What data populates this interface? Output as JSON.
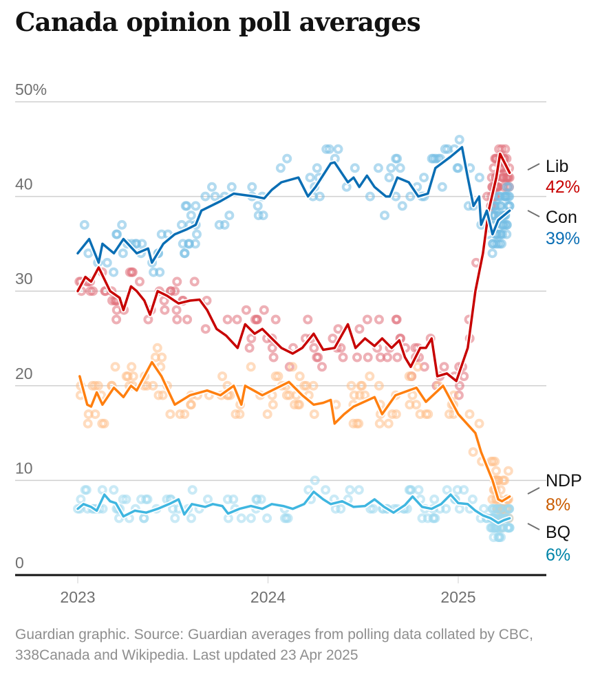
{
  "title": "Canada opinion poll averages",
  "source": "Guardian graphic. Source: Guardian averages from polling data collated by CBC, 338Canada and Wikipedia. Last updated 23 Apr 2025",
  "chart_data": {
    "type": "line",
    "title": "Canada opinion poll averages",
    "xlabel": "",
    "ylabel": "",
    "x_unit": "year (fractional)",
    "xlim": [
      2022.6,
      2025.5
    ],
    "ylim": [
      0,
      50
    ],
    "y_ticks": [
      {
        "value": 50,
        "label": "50%"
      },
      {
        "value": 40,
        "label": "40"
      },
      {
        "value": 30,
        "label": "30"
      },
      {
        "value": 20,
        "label": "20"
      },
      {
        "value": 10,
        "label": "10"
      },
      {
        "value": 0,
        "label": "0"
      }
    ],
    "x_ticks": [
      {
        "value": 2023,
        "label": "2023"
      },
      {
        "value": 2024,
        "label": "2024"
      },
      {
        "value": 2025,
        "label": "2025"
      }
    ],
    "grid": true,
    "legend": "direct labels at right end of lines",
    "series": [
      {
        "name": "Lib",
        "final_label": "42%",
        "color": "#c70000",
        "dot_color": "#e0707a",
        "points": [
          [
            2023.0,
            30
          ],
          [
            2023.04,
            31.5
          ],
          [
            2023.07,
            31
          ],
          [
            2023.11,
            32.5
          ],
          [
            2023.17,
            30
          ],
          [
            2023.22,
            29.3
          ],
          [
            2023.24,
            28
          ],
          [
            2023.28,
            30.5
          ],
          [
            2023.31,
            30
          ],
          [
            2023.35,
            29
          ],
          [
            2023.38,
            27.5
          ],
          [
            2023.42,
            30
          ],
          [
            2023.47,
            29.5
          ],
          [
            2023.53,
            28.7
          ],
          [
            2023.59,
            29
          ],
          [
            2023.64,
            29.1
          ],
          [
            2023.68,
            28
          ],
          [
            2023.73,
            26
          ],
          [
            2023.78,
            25.3
          ],
          [
            2023.84,
            24
          ],
          [
            2023.88,
            26.5
          ],
          [
            2023.93,
            25.5
          ],
          [
            2023.97,
            26
          ],
          [
            2024.02,
            25
          ],
          [
            2024.07,
            24
          ],
          [
            2024.13,
            23.4
          ],
          [
            2024.18,
            24
          ],
          [
            2024.24,
            25.5
          ],
          [
            2024.29,
            23.8
          ],
          [
            2024.35,
            24
          ],
          [
            2024.42,
            26.5
          ],
          [
            2024.46,
            24
          ],
          [
            2024.51,
            25
          ],
          [
            2024.56,
            24.2
          ],
          [
            2024.6,
            25
          ],
          [
            2024.65,
            24
          ],
          [
            2024.69,
            24.8
          ],
          [
            2024.72,
            23
          ],
          [
            2024.75,
            22
          ],
          [
            2024.8,
            24
          ],
          [
            2024.83,
            24
          ],
          [
            2024.86,
            25
          ],
          [
            2024.89,
            21
          ],
          [
            2024.94,
            21.3
          ],
          [
            2024.99,
            20.5
          ],
          [
            2025.05,
            24
          ],
          [
            2025.09,
            30
          ],
          [
            2025.13,
            34
          ],
          [
            2025.16,
            38.5
          ],
          [
            2025.2,
            42
          ],
          [
            2025.22,
            44.5
          ],
          [
            2025.27,
            42.5
          ]
        ]
      },
      {
        "name": "Con",
        "final_label": "39%",
        "color": "#0a6eb4",
        "dot_color": "#74bde3",
        "points": [
          [
            2023.0,
            34
          ],
          [
            2023.06,
            35.5
          ],
          [
            2023.11,
            33
          ],
          [
            2023.13,
            35
          ],
          [
            2023.19,
            34
          ],
          [
            2023.24,
            35.5
          ],
          [
            2023.31,
            34
          ],
          [
            2023.37,
            34.5
          ],
          [
            2023.39,
            33
          ],
          [
            2023.45,
            35
          ],
          [
            2023.51,
            36
          ],
          [
            2023.57,
            36.5
          ],
          [
            2023.62,
            37
          ],
          [
            2023.65,
            38.5
          ],
          [
            2023.75,
            39.5
          ],
          [
            2023.82,
            40.3
          ],
          [
            2023.93,
            40
          ],
          [
            2023.98,
            39.8
          ],
          [
            2024.02,
            40.7
          ],
          [
            2024.07,
            41.5
          ],
          [
            2024.16,
            42
          ],
          [
            2024.21,
            40
          ],
          [
            2024.25,
            41
          ],
          [
            2024.33,
            43.5
          ],
          [
            2024.35,
            43.6
          ],
          [
            2024.42,
            41.5
          ],
          [
            2024.45,
            42
          ],
          [
            2024.48,
            41
          ],
          [
            2024.52,
            42.2
          ],
          [
            2024.56,
            41
          ],
          [
            2024.62,
            40
          ],
          [
            2024.64,
            40
          ],
          [
            2024.68,
            42
          ],
          [
            2024.74,
            41.5
          ],
          [
            2024.79,
            40
          ],
          [
            2024.84,
            40.3
          ],
          [
            2024.88,
            43
          ],
          [
            2024.96,
            44.2
          ],
          [
            2025.02,
            45.2
          ],
          [
            2025.05,
            42
          ],
          [
            2025.08,
            39
          ],
          [
            2025.11,
            40
          ],
          [
            2025.12,
            37
          ],
          [
            2025.15,
            38.5
          ],
          [
            2025.18,
            36
          ],
          [
            2025.21,
            37.5
          ],
          [
            2025.27,
            38.5
          ]
        ]
      },
      {
        "name": "NDP",
        "final_label": "8%",
        "color": "#ff7f0f",
        "label_color": "#c95b00",
        "dot_color": "#ffbf8a",
        "points": [
          [
            2023.01,
            21
          ],
          [
            2023.05,
            18
          ],
          [
            2023.07,
            17.8
          ],
          [
            2023.1,
            19.3
          ],
          [
            2023.13,
            18
          ],
          [
            2023.19,
            19.8
          ],
          [
            2023.24,
            18.8
          ],
          [
            2023.28,
            20
          ],
          [
            2023.31,
            19.5
          ],
          [
            2023.39,
            22.5
          ],
          [
            2023.44,
            21
          ],
          [
            2023.51,
            18
          ],
          [
            2023.59,
            19
          ],
          [
            2023.68,
            19.5
          ],
          [
            2023.75,
            19
          ],
          [
            2023.82,
            20
          ],
          [
            2023.86,
            18
          ],
          [
            2023.88,
            20
          ],
          [
            2023.97,
            19
          ],
          [
            2024.11,
            20.4
          ],
          [
            2024.18,
            19
          ],
          [
            2024.24,
            18
          ],
          [
            2024.29,
            18.2
          ],
          [
            2024.33,
            18.5
          ],
          [
            2024.35,
            16
          ],
          [
            2024.4,
            17
          ],
          [
            2024.45,
            17.8
          ],
          [
            2024.56,
            18.8
          ],
          [
            2024.6,
            17
          ],
          [
            2024.67,
            19
          ],
          [
            2024.78,
            19.8
          ],
          [
            2024.83,
            18.3
          ],
          [
            2024.92,
            20
          ],
          [
            2025.0,
            17
          ],
          [
            2025.09,
            15
          ],
          [
            2025.12,
            13
          ],
          [
            2025.18,
            10
          ],
          [
            2025.21,
            8
          ],
          [
            2025.23,
            7.8
          ],
          [
            2025.27,
            8.3
          ]
        ]
      },
      {
        "name": "BQ",
        "final_label": "6%",
        "color": "#3fb6e0",
        "label_color": "#0084a8",
        "dot_color": "#9fd9ef",
        "points": [
          [
            2023.0,
            7
          ],
          [
            2023.03,
            7.5
          ],
          [
            2023.07,
            7.2
          ],
          [
            2023.1,
            6.8
          ],
          [
            2023.14,
            8.5
          ],
          [
            2023.17,
            7.8
          ],
          [
            2023.2,
            7.6
          ],
          [
            2023.24,
            6.2
          ],
          [
            2023.3,
            6.8
          ],
          [
            2023.36,
            6.6
          ],
          [
            2023.42,
            7
          ],
          [
            2023.48,
            7.5
          ],
          [
            2023.53,
            8
          ],
          [
            2023.56,
            6.4
          ],
          [
            2023.6,
            7.5
          ],
          [
            2023.67,
            7.2
          ],
          [
            2023.71,
            7.5
          ],
          [
            2023.76,
            7.3
          ],
          [
            2023.79,
            6.5
          ],
          [
            2023.85,
            7
          ],
          [
            2023.91,
            7.3
          ],
          [
            2023.97,
            7
          ],
          [
            2024.02,
            7.5
          ],
          [
            2024.08,
            7.3
          ],
          [
            2024.13,
            7
          ],
          [
            2024.19,
            7.5
          ],
          [
            2024.24,
            8.8
          ],
          [
            2024.29,
            8
          ],
          [
            2024.33,
            7.5
          ],
          [
            2024.39,
            7.8
          ],
          [
            2024.45,
            7.2
          ],
          [
            2024.51,
            7.3
          ],
          [
            2024.56,
            8
          ],
          [
            2024.61,
            7.2
          ],
          [
            2024.66,
            6.6
          ],
          [
            2024.72,
            7.4
          ],
          [
            2024.76,
            8.3
          ],
          [
            2024.81,
            7.2
          ],
          [
            2024.86,
            7
          ],
          [
            2024.91,
            7.5
          ],
          [
            2024.96,
            8.5
          ],
          [
            2025.0,
            7.6
          ],
          [
            2025.05,
            7.5
          ],
          [
            2025.09,
            6.8
          ],
          [
            2025.13,
            6.3
          ],
          [
            2025.17,
            6
          ],
          [
            2025.21,
            5.5
          ],
          [
            2025.24,
            5.8
          ],
          [
            2025.27,
            6
          ]
        ]
      }
    ]
  }
}
